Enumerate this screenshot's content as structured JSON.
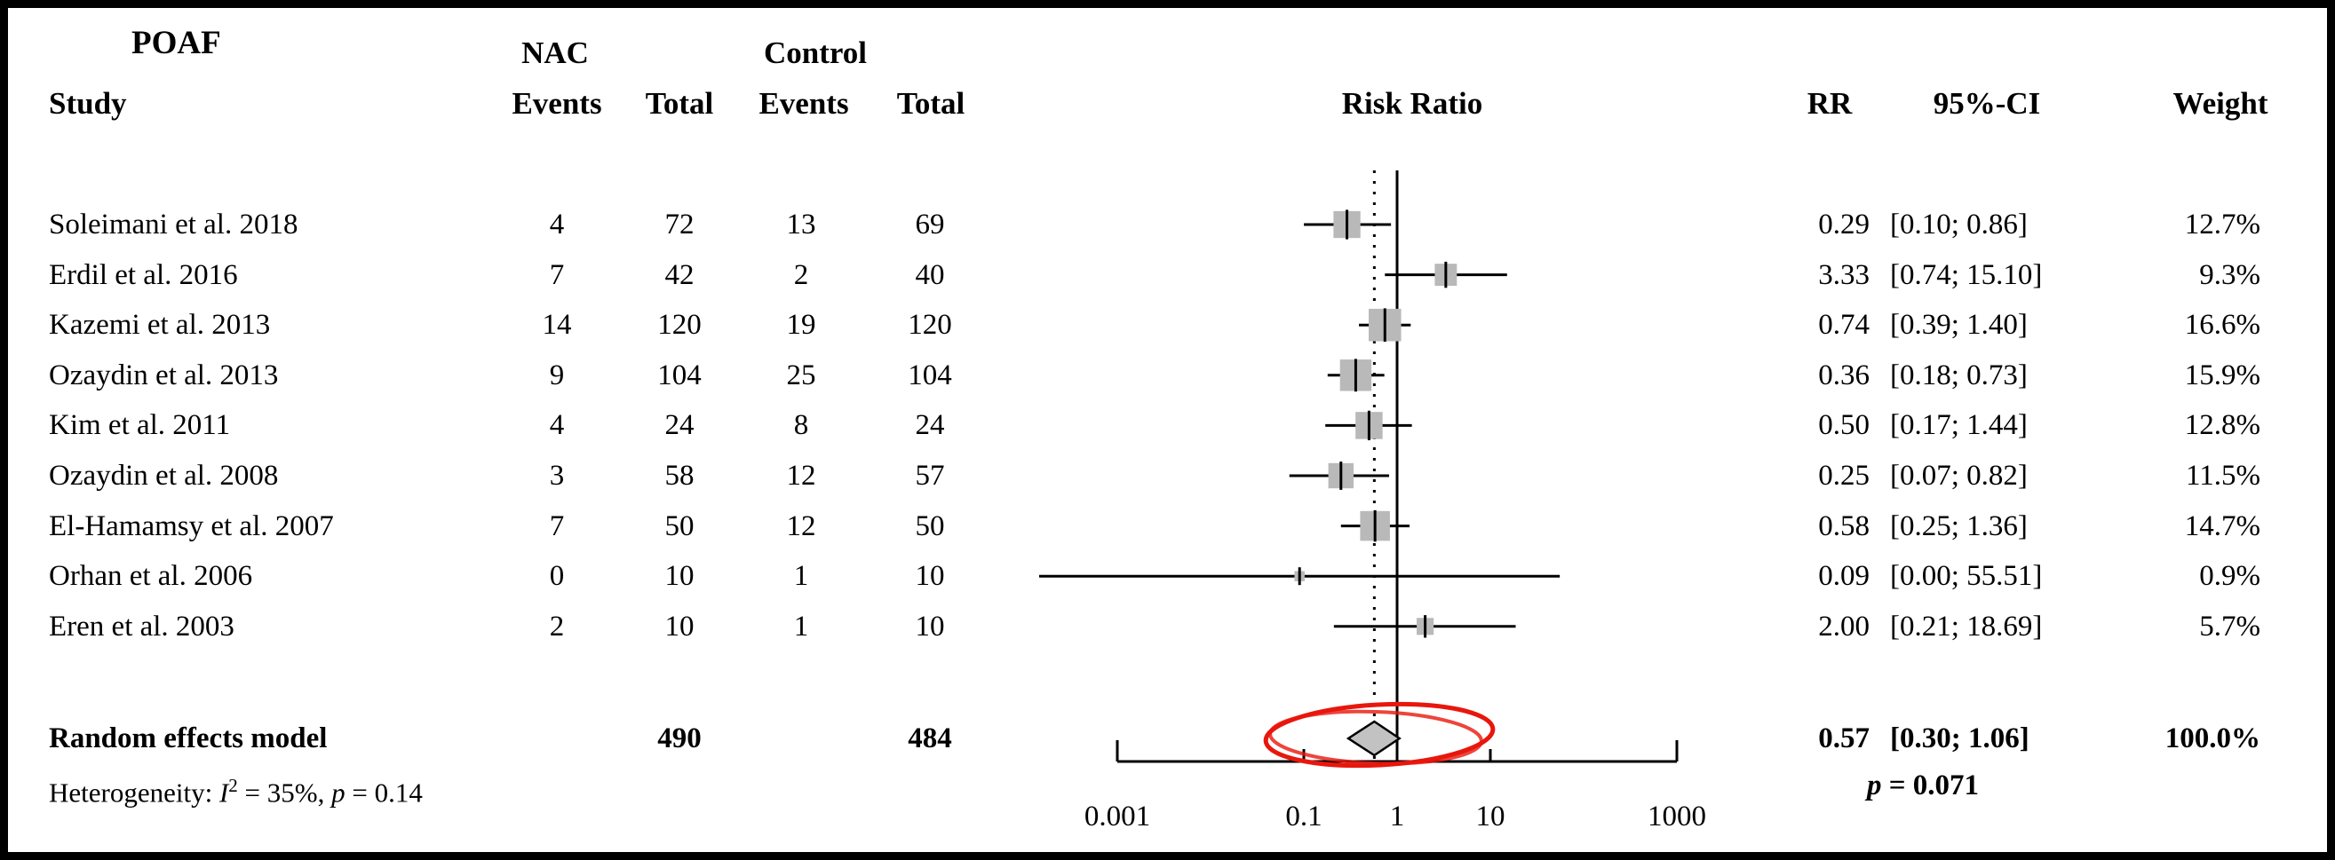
{
  "frame": {
    "title": "POAF"
  },
  "columns": {
    "study": "Study",
    "group1": "NAC",
    "group2": "Control",
    "events1": "Events",
    "total1": "Total",
    "events2": "Events",
    "total2": "Total",
    "plot": "Risk Ratio",
    "rr": "RR",
    "ci": "95%-CI",
    "weight": "Weight"
  },
  "chart_data": {
    "type": "forest",
    "title": "POAF",
    "effect_measure": "Risk Ratio",
    "x_scale": "log10",
    "xlim": [
      0.001,
      1000
    ],
    "x_tick_values": [
      0.001,
      0.1,
      1,
      10,
      1000
    ],
    "x_ticks": [
      "0.001",
      "0.1",
      "1",
      "10",
      "1000"
    ],
    "null_value": 1,
    "studies": [
      {
        "name": "Soleimani et al. 2018",
        "nac_events": "4",
        "nac_total": "72",
        "control_events": "13",
        "control_total": "69",
        "rr": 0.29,
        "ci_low": 0.1,
        "ci_high": 0.86,
        "rr_label": "0.29",
        "ci_label": "[0.10; 0.86]",
        "weight": 12.7,
        "weight_label": "12.7%"
      },
      {
        "name": "Erdil et al. 2016",
        "nac_events": "7",
        "nac_total": "42",
        "control_events": "2",
        "control_total": "40",
        "rr": 3.33,
        "ci_low": 0.74,
        "ci_high": 15.1,
        "rr_label": "3.33",
        "ci_label": "[0.74; 15.10]",
        "weight": 9.3,
        "weight_label": "9.3%"
      },
      {
        "name": "Kazemi et al. 2013",
        "nac_events": "14",
        "nac_total": "120",
        "control_events": "19",
        "control_total": "120",
        "rr": 0.74,
        "ci_low": 0.39,
        "ci_high": 1.4,
        "rr_label": "0.74",
        "ci_label": "[0.39; 1.40]",
        "weight": 16.6,
        "weight_label": "16.6%"
      },
      {
        "name": "Ozaydin et al. 2013",
        "nac_events": "9",
        "nac_total": "104",
        "control_events": "25",
        "control_total": "104",
        "rr": 0.36,
        "ci_low": 0.18,
        "ci_high": 0.73,
        "rr_label": "0.36",
        "ci_label": "[0.18; 0.73]",
        "weight": 15.9,
        "weight_label": "15.9%"
      },
      {
        "name": "Kim et al. 2011",
        "nac_events": "4",
        "nac_total": "24",
        "control_events": "8",
        "control_total": "24",
        "rr": 0.5,
        "ci_low": 0.17,
        "ci_high": 1.44,
        "rr_label": "0.50",
        "ci_label": "[0.17; 1.44]",
        "weight": 12.8,
        "weight_label": "12.8%"
      },
      {
        "name": "Ozaydin et al. 2008",
        "nac_events": "3",
        "nac_total": "58",
        "control_events": "12",
        "control_total": "57",
        "rr": 0.25,
        "ci_low": 0.07,
        "ci_high": 0.82,
        "rr_label": "0.25",
        "ci_label": "[0.07; 0.82]",
        "weight": 11.5,
        "weight_label": "11.5%"
      },
      {
        "name": "El-Hamamsy et al. 2007",
        "nac_events": "7",
        "nac_total": "50",
        "control_events": "12",
        "control_total": "50",
        "rr": 0.58,
        "ci_low": 0.25,
        "ci_high": 1.36,
        "rr_label": "0.58",
        "ci_label": "[0.25; 1.36]",
        "weight": 14.7,
        "weight_label": "14.7%"
      },
      {
        "name": "Orhan et al. 2006",
        "nac_events": "0",
        "nac_total": "10",
        "control_events": "1",
        "control_total": "10",
        "rr": 0.09,
        "ci_low": 0.0,
        "ci_high": 55.51,
        "rr_label": "0.09",
        "ci_label": "[0.00; 55.51]",
        "weight": 0.9,
        "weight_label": "0.9%"
      },
      {
        "name": "Eren et al. 2003",
        "nac_events": "2",
        "nac_total": "10",
        "control_events": "1",
        "control_total": "10",
        "rr": 2.0,
        "ci_low": 0.21,
        "ci_high": 18.69,
        "rr_label": "2.00",
        "ci_label": "[0.21; 18.69]",
        "weight": 5.7,
        "weight_label": "5.7%"
      }
    ],
    "summary": {
      "name": "Random effects model",
      "nac_total": "490",
      "control_total": "484",
      "rr": 0.57,
      "ci_low": 0.3,
      "ci_high": 1.06,
      "rr_label": "0.57",
      "ci_label": "[0.30; 1.06]",
      "weight_label": "100.0%"
    },
    "heterogeneity": {
      "prefix": "Heterogeneity: ",
      "i_label": "I",
      "i_sup": "2",
      "mid": " = 35%, ",
      "p_label": "p",
      "suffix": " = 0.14"
    },
    "p_line": {
      "p_label": "p",
      "suffix": " = 0.071"
    }
  },
  "annotation": {
    "type": "red-ellipse",
    "color": "#e8170d"
  }
}
